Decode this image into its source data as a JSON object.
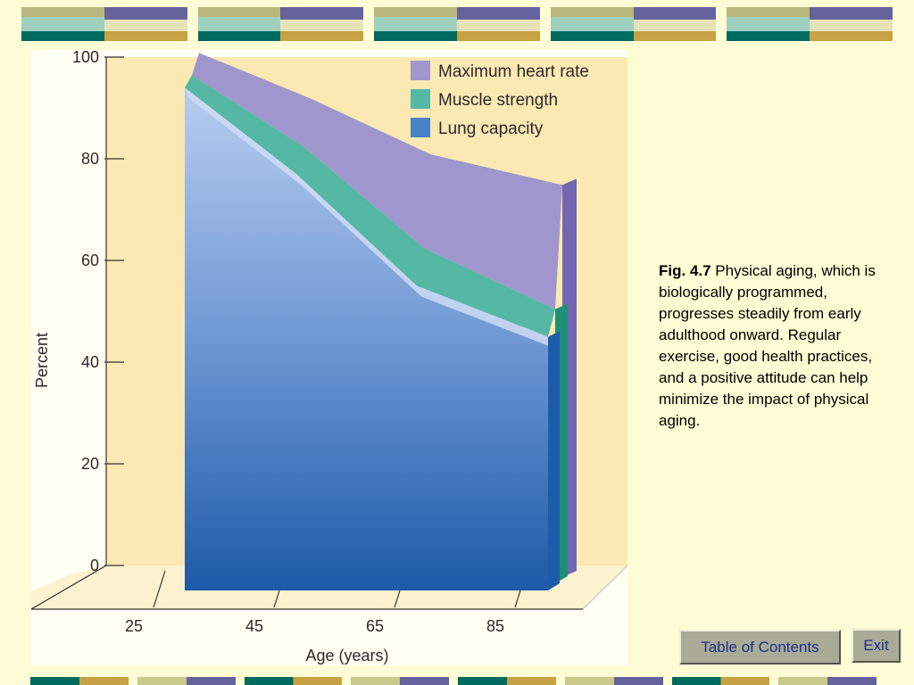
{
  "caption": {
    "figure_label": "Fig. 4.7",
    "text": " Physical aging, which is biologically programmed, progresses steadily from early adulthood onward. Regular exercise, good health practices, and a positive attitude can help minimize the impact of physical aging."
  },
  "buttons": {
    "toc": "Table of Contents",
    "exit": "Exit"
  },
  "colors": {
    "background": "#fdfcd4",
    "plot_background": "#fbe8b2",
    "max_heart_rate": "#9e96cc",
    "muscle_strength": "#55b8a5",
    "lung_capacity": "#4a82c6",
    "button": "#a9ab96",
    "button_text": "#1f2f8a"
  },
  "chart_data": {
    "type": "area",
    "style": "3d stacked ribbons",
    "xlabel": "Age (years)",
    "ylabel": "Percent",
    "x_ticks": [
      "25",
      "45",
      "65",
      "85"
    ],
    "y_ticks": [
      "100",
      "80",
      "60",
      "40",
      "20",
      "0"
    ],
    "ylim": [
      0,
      100
    ],
    "x": [
      25,
      45,
      65,
      85
    ],
    "legend_position": "top-right",
    "series": [
      {
        "name": "Maximum heart rate",
        "values": [
          100,
          91,
          80,
          74
        ],
        "color": "#9e96cc"
      },
      {
        "name": "Muscle strength",
        "values": [
          96,
          82,
          62,
          50
        ],
        "color": "#55b8a5"
      },
      {
        "name": "Lung capacity",
        "values": [
          94,
          77,
          55,
          45
        ],
        "color": "#4a82c6"
      }
    ]
  }
}
